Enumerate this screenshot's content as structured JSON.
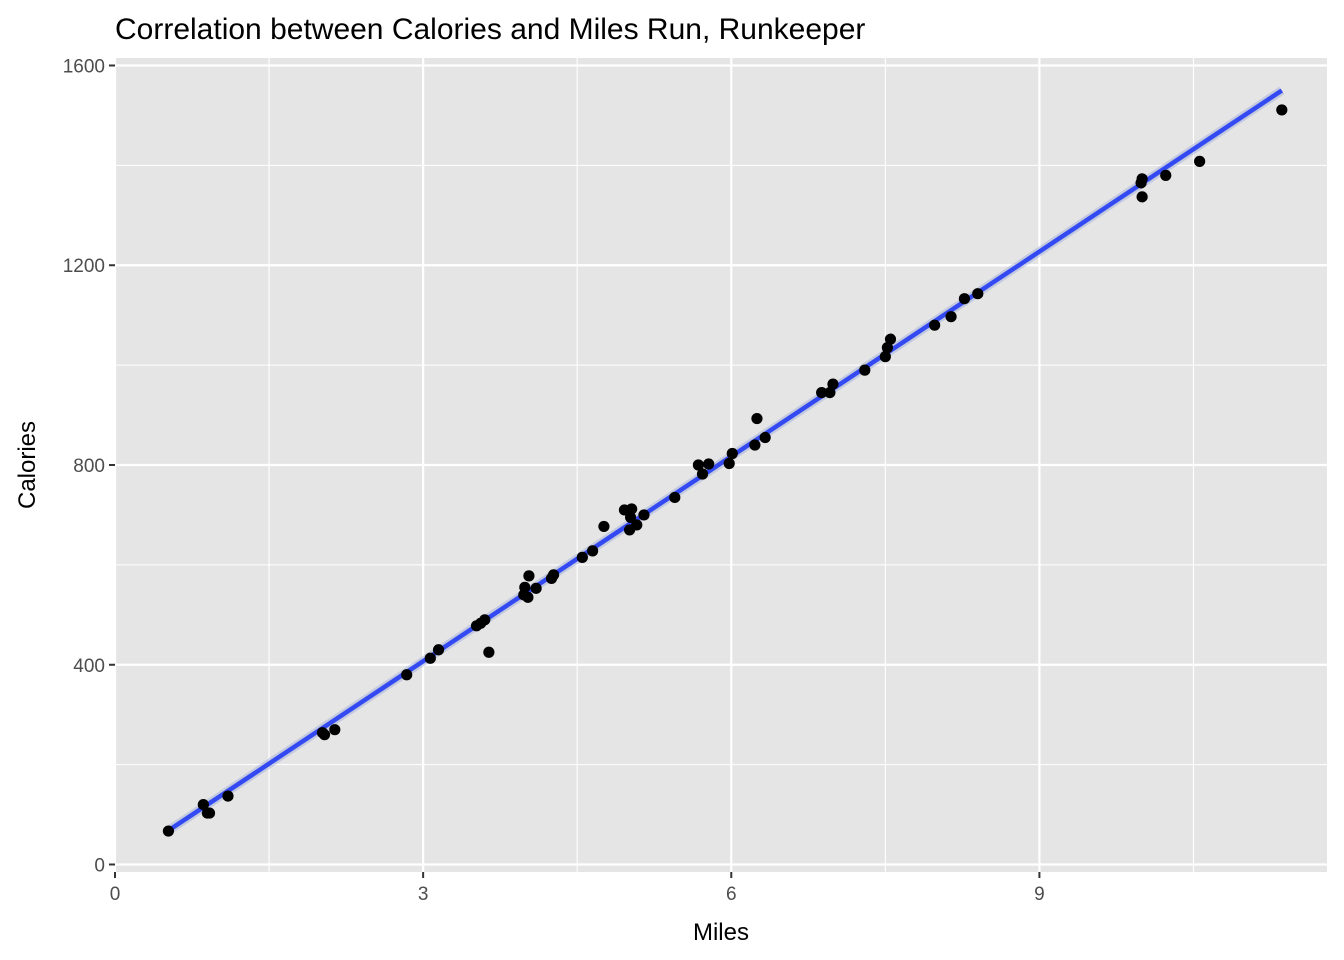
{
  "chart_data": {
    "type": "scatter",
    "title": "Correlation between Calories and Miles Run, Runkeeper",
    "xlabel": "Miles",
    "ylabel": "Calories",
    "xlim": [
      0,
      11.8
    ],
    "ylim": [
      -15,
      1615
    ],
    "x_ticks": [
      0,
      3,
      6,
      9
    ],
    "x_tick_labels": [
      "0",
      "3",
      "6",
      "9"
    ],
    "y_ticks": [
      0,
      400,
      800,
      1200,
      1600
    ],
    "y_tick_labels": [
      "0",
      "400",
      "800",
      "1200",
      "1600"
    ],
    "grid": true,
    "legend": "none",
    "colors": {
      "panel_background": "#e5e5e5",
      "grid": "#ffffff",
      "points": "#000000",
      "trend_line": "#3349f2"
    },
    "series": [
      {
        "type": "scatter",
        "points": [
          [
            0.52,
            67
          ],
          [
            0.86,
            120
          ],
          [
            0.9,
            103
          ],
          [
            0.92,
            103
          ],
          [
            1.1,
            137
          ],
          [
            2.02,
            264
          ],
          [
            2.04,
            260
          ],
          [
            2.14,
            270
          ],
          [
            2.84,
            380
          ],
          [
            3.07,
            413
          ],
          [
            3.15,
            430
          ],
          [
            3.52,
            478
          ],
          [
            3.56,
            483
          ],
          [
            3.6,
            490
          ],
          [
            3.64,
            425
          ],
          [
            3.98,
            540
          ],
          [
            3.99,
            555
          ],
          [
            4.02,
            535
          ],
          [
            4.03,
            578
          ],
          [
            4.1,
            553
          ],
          [
            4.25,
            573
          ],
          [
            4.27,
            580
          ],
          [
            4.55,
            615
          ],
          [
            4.65,
            628
          ],
          [
            4.76,
            677
          ],
          [
            4.96,
            710
          ],
          [
            5.01,
            670
          ],
          [
            5.02,
            695
          ],
          [
            5.03,
            712
          ],
          [
            5.08,
            680
          ],
          [
            5.15,
            700
          ],
          [
            5.45,
            735
          ],
          [
            5.68,
            800
          ],
          [
            5.72,
            782
          ],
          [
            5.78,
            802
          ],
          [
            5.98,
            803
          ],
          [
            6.01,
            823
          ],
          [
            6.23,
            840
          ],
          [
            6.25,
            893
          ],
          [
            6.33,
            855
          ],
          [
            6.88,
            945
          ],
          [
            6.96,
            945
          ],
          [
            6.99,
            962
          ],
          [
            7.3,
            990
          ],
          [
            7.5,
            1017
          ],
          [
            7.52,
            1035
          ],
          [
            7.55,
            1052
          ],
          [
            7.98,
            1080
          ],
          [
            8.14,
            1097
          ],
          [
            8.27,
            1133
          ],
          [
            8.4,
            1143
          ],
          [
            9.99,
            1365
          ],
          [
            10.0,
            1373
          ],
          [
            10.0,
            1337
          ],
          [
            10.23,
            1380
          ],
          [
            10.56,
            1408
          ],
          [
            11.36,
            1511
          ]
        ]
      },
      {
        "type": "line",
        "points": [
          [
            0.52,
            68
          ],
          [
            11.36,
            1550
          ]
        ]
      }
    ]
  }
}
